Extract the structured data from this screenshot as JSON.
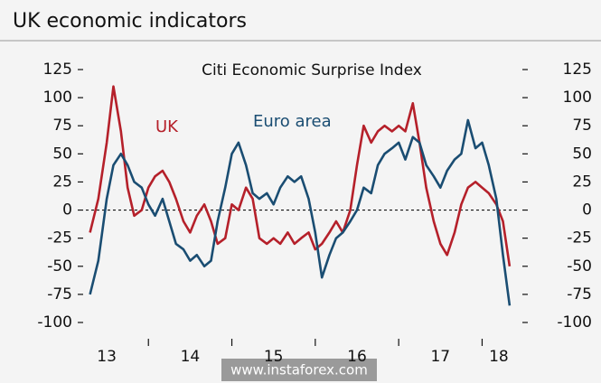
{
  "chart_data": {
    "type": "line",
    "title": "UK economic indicators",
    "subtitle": "Citi Economic Surprise Index",
    "watermark": "www.instaforex.com",
    "x": [
      2013.3,
      2013.4,
      2013.5,
      2013.58,
      2013.67,
      2013.75,
      2013.83,
      2013.92,
      2014.0,
      2014.08,
      2014.17,
      2014.25,
      2014.33,
      2014.42,
      2014.5,
      2014.58,
      2014.67,
      2014.75,
      2014.83,
      2014.92,
      2015.0,
      2015.08,
      2015.17,
      2015.25,
      2015.33,
      2015.42,
      2015.5,
      2015.58,
      2015.67,
      2015.75,
      2015.83,
      2015.92,
      2016.0,
      2016.08,
      2016.17,
      2016.25,
      2016.33,
      2016.42,
      2016.5,
      2016.58,
      2016.67,
      2016.75,
      2016.83,
      2016.92,
      2017.0,
      2017.08,
      2017.17,
      2017.25,
      2017.33,
      2017.42,
      2017.5,
      2017.58,
      2017.67,
      2017.75,
      2017.83,
      2017.92,
      2018.0,
      2018.08,
      2018.17,
      2018.25,
      2018.33
    ],
    "series": [
      {
        "name": "UK",
        "color": "#b5202a",
        "values": [
          -20,
          10,
          60,
          110,
          70,
          20,
          -5,
          0,
          20,
          30,
          35,
          25,
          10,
          -10,
          -20,
          -5,
          5,
          -10,
          -30,
          -25,
          5,
          0,
          20,
          10,
          -25,
          -30,
          -25,
          -30,
          -20,
          -30,
          -25,
          -20,
          -35,
          -30,
          -20,
          -10,
          -20,
          0,
          40,
          75,
          60,
          70,
          75,
          70,
          75,
          70,
          95,
          60,
          20,
          -10,
          -30,
          -40,
          -20,
          5,
          20,
          25,
          20,
          15,
          5,
          -10,
          -50
        ]
      },
      {
        "name": "Euro area",
        "color": "#1a4d72",
        "values": [
          -75,
          -45,
          10,
          40,
          50,
          40,
          25,
          20,
          5,
          -5,
          10,
          -10,
          -30,
          -35,
          -45,
          -40,
          -50,
          -45,
          -10,
          20,
          50,
          60,
          40,
          15,
          10,
          15,
          5,
          20,
          30,
          25,
          30,
          10,
          -20,
          -60,
          -40,
          -25,
          -20,
          -10,
          0,
          20,
          15,
          40,
          50,
          55,
          60,
          45,
          65,
          60,
          40,
          30,
          20,
          35,
          45,
          50,
          80,
          55,
          60,
          40,
          10,
          -40,
          -85
        ]
      }
    ],
    "xlim": [
      2013.25,
      2018.45
    ],
    "xticks": [
      2014,
      2015,
      2016,
      2017,
      2018
    ],
    "year_labels": [
      {
        "value": 2013.5,
        "label": "13"
      },
      {
        "value": 2014.5,
        "label": "14"
      },
      {
        "value": 2015.5,
        "label": "15"
      },
      {
        "value": 2016.5,
        "label": "16"
      },
      {
        "value": 2017.5,
        "label": "17"
      },
      {
        "value": 2018.2,
        "label": "18"
      }
    ],
    "ylim": [
      -100,
      125
    ],
    "yticks": [
      -100,
      -75,
      -50,
      -25,
      0,
      25,
      50,
      75,
      100,
      125
    ],
    "y2lim": [
      -100,
      125
    ],
    "y2ticks": [
      -100,
      -75,
      -50,
      -25,
      0,
      25,
      50,
      75,
      100,
      125
    ],
    "zero_line": true
  }
}
